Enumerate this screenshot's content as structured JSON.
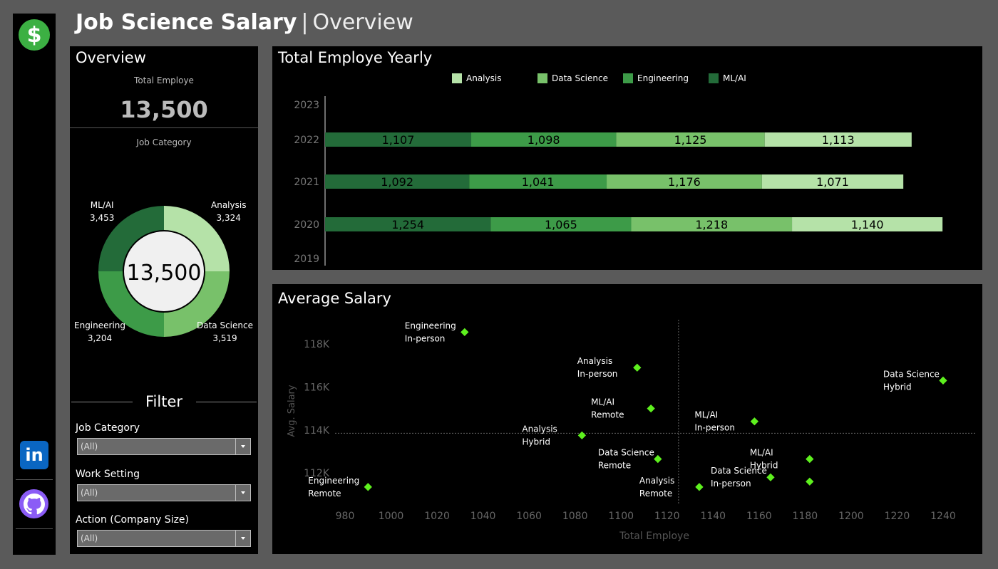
{
  "page": {
    "title": "Job Science Salary",
    "separator": "|",
    "subtitle": "Overview"
  },
  "sidebar": {
    "logo_glyph": "$",
    "linkedin_glyph": "in",
    "icons": [
      "dollar-icon",
      "linkedin-icon",
      "github-icon"
    ]
  },
  "colors": {
    "analysis": "#b5e2a8",
    "data_science": "#78c16a",
    "engineering": "#3d9b48",
    "ml_ai": "#236b39",
    "scatter": "#5ef01e"
  },
  "overview": {
    "heading": "Overview",
    "kpi_label": "Total Employe",
    "kpi_value": "13,500",
    "donut_label": "Job Category",
    "donut_center": "13,500",
    "segments": [
      {
        "name": "Analysis",
        "value": "3,324"
      },
      {
        "name": "Data Science",
        "value": "3,519"
      },
      {
        "name": "Engineering",
        "value": "3,204"
      },
      {
        "name": "ML/AI",
        "value": "3,453"
      }
    ]
  },
  "filter": {
    "heading": "Filter",
    "fields": [
      {
        "label": "Job Category",
        "value": "(All)"
      },
      {
        "label": "Work Setting",
        "value": "(All)"
      },
      {
        "label": "Action (Company Size)",
        "value": "(All)"
      }
    ]
  },
  "yearly": {
    "heading": "Total Employe Yearly",
    "legend": [
      "Analysis",
      "Data Science",
      "Engineering",
      "ML/AI"
    ]
  },
  "salary": {
    "heading": "Average Salary"
  },
  "chart_data": [
    {
      "type": "bar",
      "title": "Total Employe Yearly",
      "orientation": "horizontal-stacked",
      "categories": [
        "2023",
        "2022",
        "2021",
        "2020",
        "2019"
      ],
      "series": [
        {
          "name": "ML/AI",
          "values": [
            null,
            1107,
            1092,
            1254,
            null
          ]
        },
        {
          "name": "Engineering",
          "values": [
            null,
            1098,
            1041,
            1065,
            null
          ]
        },
        {
          "name": "Data Science",
          "values": [
            null,
            1125,
            1176,
            1218,
            null
          ]
        },
        {
          "name": "Analysis",
          "values": [
            null,
            1113,
            1071,
            1140,
            null
          ]
        }
      ],
      "legend": "top"
    },
    {
      "type": "scatter",
      "title": "Average Salary",
      "xlabel": "Total Employe",
      "ylabel": "Avg. Salary",
      "xlim": [
        972,
        1248
      ],
      "ylim": [
        111000,
        119000
      ],
      "xticks": [
        980,
        1000,
        1020,
        1040,
        1060,
        1080,
        1100,
        1120,
        1140,
        1160,
        1180,
        1200,
        1220,
        1240
      ],
      "yticks": [
        {
          "v": 112000,
          "label": "112K"
        },
        {
          "v": 114000,
          "label": "114K"
        },
        {
          "v": 116000,
          "label": "116K"
        },
        {
          "v": 118000,
          "label": "118K"
        }
      ],
      "reference_lines": {
        "x": 1125,
        "y": 113850
      },
      "points": [
        {
          "x": 1032,
          "y": 118550,
          "label": [
            "Engineering",
            "In-person"
          ]
        },
        {
          "x": 1107,
          "y": 116900,
          "label": [
            "Analysis",
            "In-person"
          ]
        },
        {
          "x": 1240,
          "y": 116300,
          "label": [
            "Data Science",
            "Hybrid"
          ]
        },
        {
          "x": 1113,
          "y": 115000,
          "label": [
            "ML/AI",
            "Remote"
          ]
        },
        {
          "x": 1158,
          "y": 114400,
          "label": [
            "ML/AI",
            "In-person"
          ]
        },
        {
          "x": 1083,
          "y": 113750,
          "label": [
            "Analysis",
            "Hybrid"
          ]
        },
        {
          "x": 1116,
          "y": 112650,
          "label": [
            "Data Science",
            "Remote"
          ]
        },
        {
          "x": 1182,
          "y": 112650,
          "label": [
            "ML/AI",
            "Hybrid"
          ]
        },
        {
          "x": 1165,
          "y": 111800,
          "label": [
            "Data Science",
            "In-person"
          ]
        },
        {
          "x": 1182,
          "y": 111600,
          "label": []
        },
        {
          "x": 990,
          "y": 111350,
          "label": [
            "Engineering",
            "Remote"
          ]
        },
        {
          "x": 1134,
          "y": 111350,
          "label": [
            "Analysis",
            "Remote"
          ]
        }
      ]
    }
  ]
}
